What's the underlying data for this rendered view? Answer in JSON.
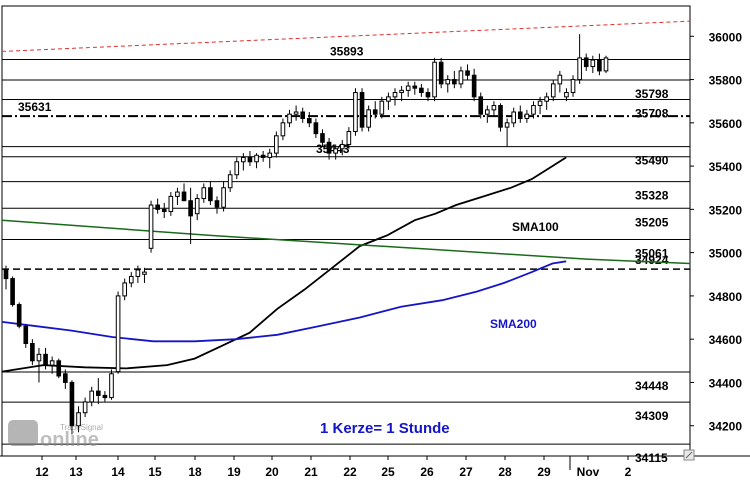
{
  "chart_data": {
    "type": "candlestick",
    "title": "",
    "xlabel": "",
    "ylabel": "",
    "ylim": [
      34060,
      36140
    ],
    "grid": false,
    "y_ticks": [
      34200,
      34400,
      34600,
      34800,
      35000,
      35200,
      35400,
      35600,
      35800,
      36000
    ],
    "x_ticks": [
      "12",
      "13",
      "14",
      "15",
      "18",
      "19",
      "20",
      "21",
      "22",
      "25",
      "26",
      "27",
      "28",
      "29",
      "Nov",
      "2"
    ],
    "horizontal_levels": [
      {
        "value": 35893,
        "label": "35893"
      },
      {
        "value": 35798,
        "label": "35798"
      },
      {
        "value": 35708,
        "label": "35708"
      },
      {
        "value": 35490,
        "label": "35490"
      },
      {
        "value": 35443,
        "label": "35443"
      },
      {
        "value": 35328,
        "label": "35328"
      },
      {
        "value": 35205,
        "label": "35205"
      },
      {
        "value": 35061,
        "label": "35061"
      },
      {
        "value": 34448,
        "label": "34448"
      },
      {
        "value": 34309,
        "label": "34309"
      },
      {
        "value": 34115,
        "label": "34115"
      }
    ],
    "dashdot_level": {
      "value": 35631,
      "label": "35631"
    },
    "dashed_level": {
      "value": 34924,
      "label": "34924"
    },
    "trendline": {
      "color": "#e03030",
      "start": [
        0,
        35930
      ],
      "end": [
        1,
        36070
      ]
    },
    "series": [
      {
        "name": "SMA100",
        "color": "#000000",
        "points": [
          [
            0.0,
            34450
          ],
          [
            0.06,
            34480
          ],
          [
            0.12,
            34470
          ],
          [
            0.18,
            34465
          ],
          [
            0.24,
            34480
          ],
          [
            0.28,
            34510
          ],
          [
            0.32,
            34570
          ],
          [
            0.36,
            34630
          ],
          [
            0.4,
            34740
          ],
          [
            0.44,
            34830
          ],
          [
            0.48,
            34930
          ],
          [
            0.52,
            35030
          ],
          [
            0.56,
            35080
          ],
          [
            0.6,
            35150
          ],
          [
            0.63,
            35180
          ],
          [
            0.66,
            35220
          ],
          [
            0.7,
            35260
          ],
          [
            0.74,
            35300
          ],
          [
            0.77,
            35340
          ],
          [
            0.8,
            35400
          ],
          [
            0.82,
            35440
          ]
        ]
      },
      {
        "name": "SMA200",
        "color": "#1515c8",
        "points": [
          [
            0.0,
            34680
          ],
          [
            0.05,
            34660
          ],
          [
            0.1,
            34640
          ],
          [
            0.16,
            34610
          ],
          [
            0.22,
            34590
          ],
          [
            0.28,
            34590
          ],
          [
            0.34,
            34600
          ],
          [
            0.4,
            34620
          ],
          [
            0.46,
            34660
          ],
          [
            0.52,
            34700
          ],
          [
            0.58,
            34750
          ],
          [
            0.64,
            34780
          ],
          [
            0.69,
            34820
          ],
          [
            0.73,
            34860
          ],
          [
            0.77,
            34910
          ],
          [
            0.8,
            34950
          ],
          [
            0.82,
            34960
          ]
        ]
      },
      {
        "name": "",
        "color": "#1a6a1a",
        "points": [
          [
            0.0,
            35150
          ],
          [
            0.3,
            35080
          ],
          [
            0.6,
            35020
          ],
          [
            0.85,
            34970
          ],
          [
            1.0,
            34950
          ]
        ]
      }
    ],
    "candles": [
      [
        34920,
        34940,
        34830,
        34880
      ],
      [
        34880,
        34890,
        34750,
        34760
      ],
      [
        34760,
        34770,
        34650,
        34660
      ],
      [
        34660,
        34670,
        34560,
        34580
      ],
      [
        34580,
        34600,
        34480,
        34500
      ],
      [
        34500,
        34560,
        34400,
        34530
      ],
      [
        34530,
        34560,
        34460,
        34480
      ],
      [
        34480,
        34520,
        34440,
        34500
      ],
      [
        34500,
        34510,
        34420,
        34430
      ],
      [
        34440,
        34460,
        34370,
        34400
      ],
      [
        34400,
        34410,
        34160,
        34200
      ],
      [
        34200,
        34290,
        34170,
        34260
      ],
      [
        34260,
        34330,
        34240,
        34310
      ],
      [
        34310,
        34380,
        34290,
        34360
      ],
      [
        34360,
        34420,
        34300,
        34340
      ],
      [
        34340,
        34360,
        34310,
        34330
      ],
      [
        34330,
        34460,
        34320,
        34440
      ],
      [
        34450,
        34820,
        34440,
        34800
      ],
      [
        34800,
        34880,
        34780,
        34860
      ],
      [
        34860,
        34910,
        34840,
        34890
      ],
      [
        34890,
        34940,
        34860,
        34920
      ],
      [
        34900,
        34930,
        34860,
        34910
      ],
      [
        35020,
        35240,
        35000,
        35220
      ],
      [
        35220,
        35250,
        35180,
        35200
      ],
      [
        35200,
        35230,
        35160,
        35190
      ],
      [
        35190,
        35280,
        35170,
        35260
      ],
      [
        35260,
        35300,
        35220,
        35280
      ],
      [
        35280,
        35320,
        35250,
        35240
      ],
      [
        35240,
        35300,
        35040,
        35170
      ],
      [
        35180,
        35270,
        35150,
        35250
      ],
      [
        35250,
        35320,
        35230,
        35300
      ],
      [
        35300,
        35330,
        35220,
        35240
      ],
      [
        35240,
        35260,
        35180,
        35210
      ],
      [
        35210,
        35330,
        35190,
        35300
      ],
      [
        35300,
        35380,
        35280,
        35360
      ],
      [
        35360,
        35440,
        35340,
        35420
      ],
      [
        35420,
        35460,
        35380,
        35440
      ],
      [
        35440,
        35470,
        35400,
        35420
      ],
      [
        35420,
        35460,
        35390,
        35450
      ],
      [
        35450,
        35470,
        35420,
        35440
      ],
      [
        35440,
        35480,
        35390,
        35460
      ],
      [
        35460,
        35560,
        35440,
        35540
      ],
      [
        35540,
        35620,
        35520,
        35600
      ],
      [
        35600,
        35660,
        35580,
        35640
      ],
      [
        35640,
        35680,
        35610,
        35650
      ],
      [
        35650,
        35670,
        35600,
        35620
      ],
      [
        35620,
        35650,
        35580,
        35600
      ],
      [
        35600,
        35620,
        35530,
        35550
      ],
      [
        35550,
        35570,
        35490,
        35510
      ],
      [
        35510,
        35530,
        35430,
        35460
      ],
      [
        35460,
        35500,
        35430,
        35480
      ],
      [
        35480,
        35520,
        35450,
        35500
      ],
      [
        35500,
        35580,
        35480,
        35560
      ],
      [
        35560,
        35760,
        35540,
        35740
      ],
      [
        35740,
        35760,
        35560,
        35580
      ],
      [
        35580,
        35680,
        35560,
        35660
      ],
      [
        35660,
        35700,
        35620,
        35640
      ],
      [
        35640,
        35720,
        35620,
        35700
      ],
      [
        35700,
        35740,
        35660,
        35720
      ],
      [
        35720,
        35760,
        35680,
        35740
      ],
      [
        35740,
        35770,
        35700,
        35750
      ],
      [
        35750,
        35790,
        35720,
        35770
      ],
      [
        35770,
        35790,
        35730,
        35760
      ],
      [
        35760,
        35780,
        35720,
        35740
      ],
      [
        35740,
        35760,
        35700,
        35720
      ],
      [
        35720,
        35900,
        35700,
        35880
      ],
      [
        35880,
        35900,
        35760,
        35780
      ],
      [
        35780,
        35820,
        35740,
        35800
      ],
      [
        35800,
        35840,
        35760,
        35780
      ],
      [
        35780,
        35860,
        35760,
        35840
      ],
      [
        35840,
        35870,
        35800,
        35820
      ],
      [
        35820,
        35850,
        35700,
        35720
      ],
      [
        35720,
        35740,
        35620,
        35640
      ],
      [
        35640,
        35680,
        35600,
        35660
      ],
      [
        35660,
        35700,
        35630,
        35680
      ],
      [
        35680,
        35690,
        35560,
        35580
      ],
      [
        35580,
        35620,
        35490,
        35600
      ],
      [
        35600,
        35670,
        35580,
        35650
      ],
      [
        35650,
        35680,
        35600,
        35620
      ],
      [
        35620,
        35660,
        35600,
        35640
      ],
      [
        35640,
        35700,
        35620,
        35680
      ],
      [
        35680,
        35720,
        35640,
        35700
      ],
      [
        35700,
        35740,
        35660,
        35720
      ],
      [
        35720,
        35800,
        35700,
        35780
      ],
      [
        35780,
        35840,
        35740,
        35820
      ],
      [
        35720,
        35760,
        35700,
        35740
      ],
      [
        35740,
        35820,
        35720,
        35800
      ],
      [
        35800,
        36010,
        35780,
        35900
      ],
      [
        35900,
        35920,
        35840,
        35860
      ],
      [
        35860,
        35910,
        35830,
        35890
      ],
      [
        35890,
        35920,
        35820,
        35840
      ],
      [
        35840,
        35910,
        35830,
        35900
      ]
    ],
    "annotations": [
      "1 Kerze= 1 Stunde"
    ]
  },
  "colors": {
    "level_lines": "#000000",
    "up_candle": "#ffffff",
    "down_candle": "#000000",
    "note": "#1515c8",
    "sma200_label": "#1515c8"
  },
  "icons": [
    "tradesignal-online-logo",
    "scroll-corner-icon"
  ],
  "logo_text": "TradeSignal online"
}
